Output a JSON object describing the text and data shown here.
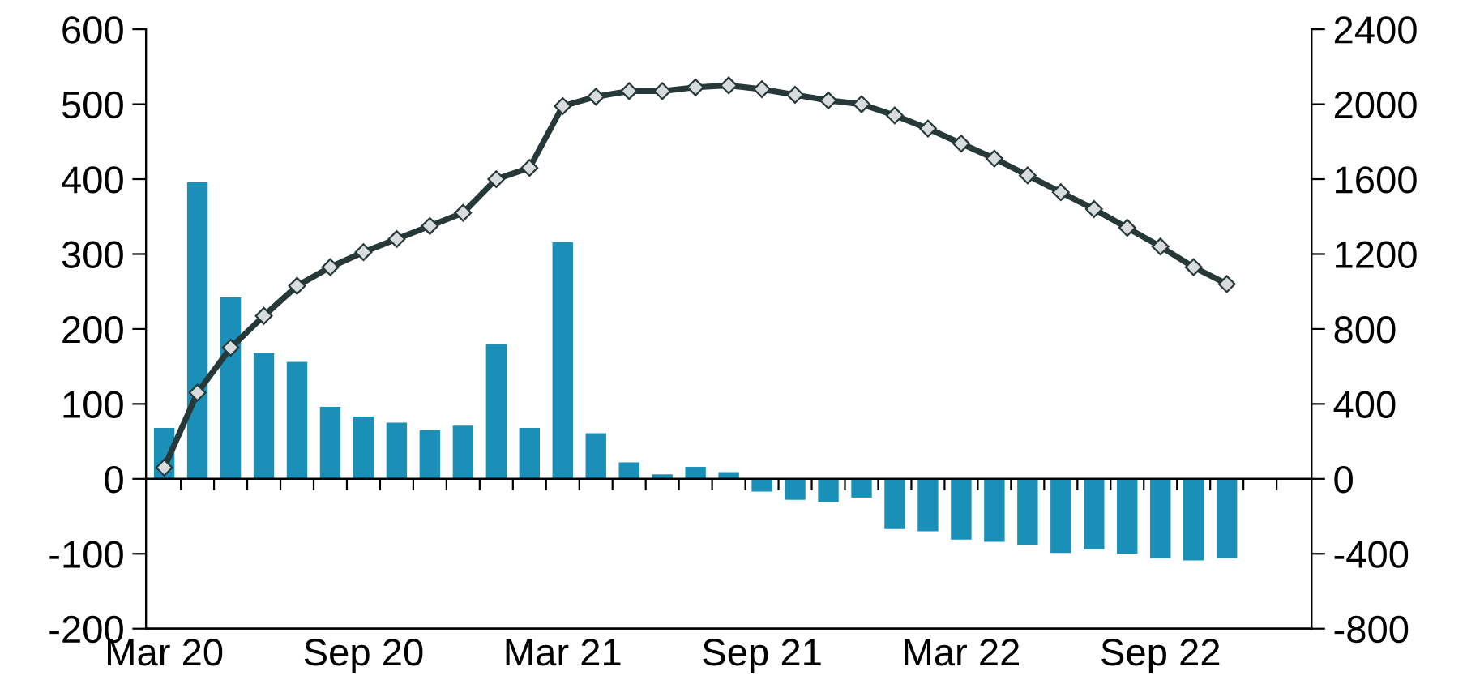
{
  "chart_data": {
    "type": "bar",
    "categories": [
      "Mar 20",
      null,
      null,
      null,
      null,
      null,
      "Sep 20",
      null,
      null,
      null,
      null,
      null,
      "Mar 21",
      null,
      null,
      null,
      null,
      null,
      "Sep 21",
      null,
      null,
      null,
      null,
      null,
      "Mar 22",
      null,
      null,
      null,
      null,
      null,
      "Sep 22",
      null,
      null,
      null,
      null
    ],
    "series": [
      {
        "color": "#1a8fb8",
        "values": [
          68,
          396,
          242,
          168,
          156,
          96,
          83,
          75,
          65,
          71,
          180,
          68,
          316,
          61,
          22,
          6,
          16,
          9,
          -17,
          -28,
          -31,
          -25,
          -67,
          -70,
          -81,
          -84,
          -88,
          -99,
          -94,
          -100,
          -106,
          -109,
          -106,
          null,
          null
        ]
      },
      {
        "type": "line",
        "axis": "y2",
        "color": "#263838",
        "marker": "diamond",
        "line_style": "solid",
        "values": [
          60,
          460,
          700,
          870,
          1030,
          1130,
          1210,
          1280,
          1350,
          1420,
          1600,
          1660,
          1990,
          2040,
          2070,
          2070,
          2090,
          2100,
          2080,
          2050,
          2020,
          2000,
          1940,
          1870,
          1790,
          1710,
          1620,
          1530,
          1440,
          1340,
          1240,
          1130,
          1040,
          null,
          null
        ]
      }
    ],
    "ylim": [
      -200,
      600
    ],
    "yticks": [
      -200,
      -100,
      0,
      100,
      200,
      300,
      400,
      500,
      600
    ],
    "y2lim": [
      -800,
      2400
    ],
    "y2ticks": [
      -800,
      -400,
      0,
      400,
      800,
      1200,
      1600,
      2000,
      2400
    ],
    "legend": false
  }
}
